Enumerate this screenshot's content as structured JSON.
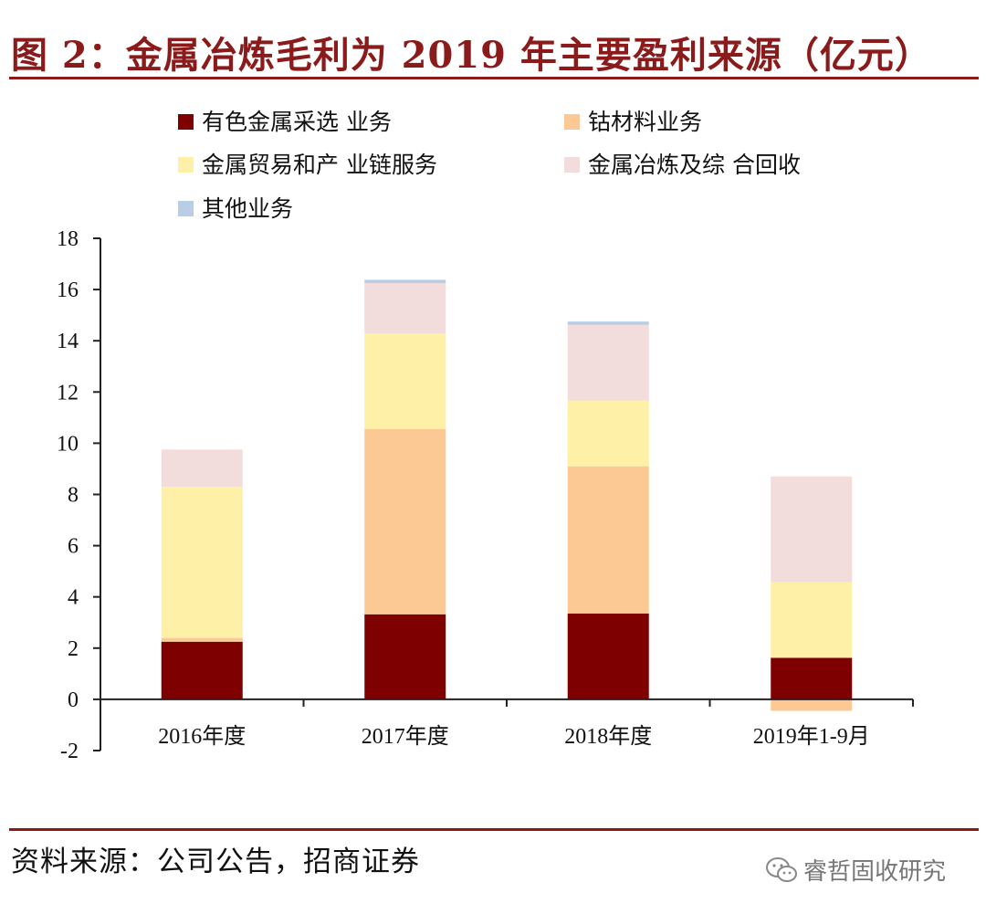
{
  "header": {
    "title": "图 2：金属冶炼毛利为 2019 年主要盈利来源（亿元）"
  },
  "footer": {
    "source": "资料来源：公司公告，招商证券",
    "watermark": "睿哲固收研究"
  },
  "colors": {
    "title": "#8b1a1a",
    "series": [
      "#7f0000",
      "#fcc995",
      "#fff0a8",
      "#f3dcdc",
      "#b9cde6"
    ]
  },
  "chart_data": {
    "type": "bar",
    "stacked": true,
    "categories": [
      "2016年度",
      "2017年度",
      "2018年度",
      "2019年1-9月"
    ],
    "series": [
      {
        "name": "有色金属采选 业务",
        "values": [
          2.25,
          3.32,
          3.35,
          1.62
        ]
      },
      {
        "name": "钴材料业务",
        "values": [
          0.15,
          7.23,
          5.75,
          -0.45
        ]
      },
      {
        "name": "金属贸易和产 业链服务",
        "values": [
          5.9,
          3.73,
          2.57,
          2.95
        ]
      },
      {
        "name": "金属冶炼及综 合回收",
        "values": [
          1.45,
          1.97,
          2.95,
          4.13
        ]
      },
      {
        "name": "其他业务",
        "values": [
          0,
          0.13,
          0.13,
          0
        ]
      }
    ],
    "ylim": [
      -2,
      18
    ],
    "yticks": [
      -2,
      0,
      2,
      4,
      6,
      8,
      10,
      12,
      14,
      16,
      18
    ],
    "legend_position": "top"
  }
}
